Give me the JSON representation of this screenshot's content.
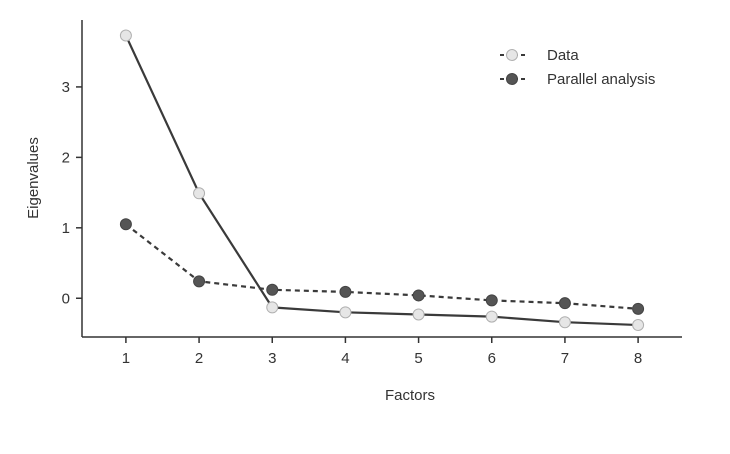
{
  "chart_data": {
    "type": "line",
    "xlabel": "Factors",
    "ylabel": "Eigenvalues",
    "x": [
      1,
      2,
      3,
      4,
      5,
      6,
      7,
      8
    ],
    "xlim": [
      0.4,
      8.6
    ],
    "ylim": [
      -0.55,
      3.95
    ],
    "x_ticks": [
      "1",
      "2",
      "3",
      "4",
      "5",
      "6",
      "7",
      "8"
    ],
    "y_ticks": [
      "0",
      "1",
      "2",
      "3"
    ],
    "grid": false,
    "legend_position": "top-right",
    "series": [
      {
        "name": "Data",
        "values": [
          3.73,
          1.49,
          -0.13,
          -0.2,
          -0.23,
          -0.26,
          -0.34,
          -0.38
        ],
        "line_style": "solid",
        "marker_color": "#e6e6e6"
      },
      {
        "name": "Parallel analysis",
        "values": [
          1.05,
          0.24,
          0.12,
          0.09,
          0.04,
          -0.03,
          -0.07,
          -0.15
        ],
        "line_style": "dashed",
        "marker_color": "#555555"
      }
    ],
    "colors": {
      "line": "#3a3a3a",
      "axis": "#333333"
    }
  }
}
